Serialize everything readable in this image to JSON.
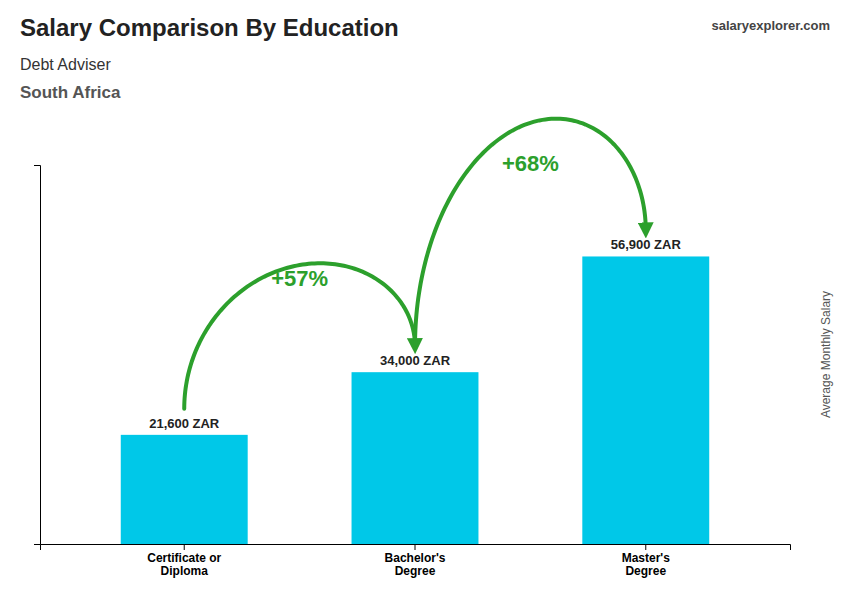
{
  "chart_data": {
    "type": "bar",
    "title": "Salary Comparison By Education",
    "subtitle": [
      "Debt Adviser",
      "South Africa"
    ],
    "ylabel": "Average Monthly Salary",
    "categories": [
      "Certificate or\nDiploma",
      "Bachelor's\nDegree",
      "Master's\nDegree"
    ],
    "values": [
      21600,
      34000,
      56900
    ],
    "value_labels": [
      "21,600 ZAR",
      "34,000 ZAR",
      "56,900 ZAR"
    ],
    "data_labels": true,
    "color": "#00c8e8",
    "ylim": [
      0,
      75000
    ],
    "tick_labels": "x",
    "annotations": [
      "+57%",
      "+68%"
    ],
    "source": [
      "salary",
      "explorer",
      ".com"
    ]
  }
}
